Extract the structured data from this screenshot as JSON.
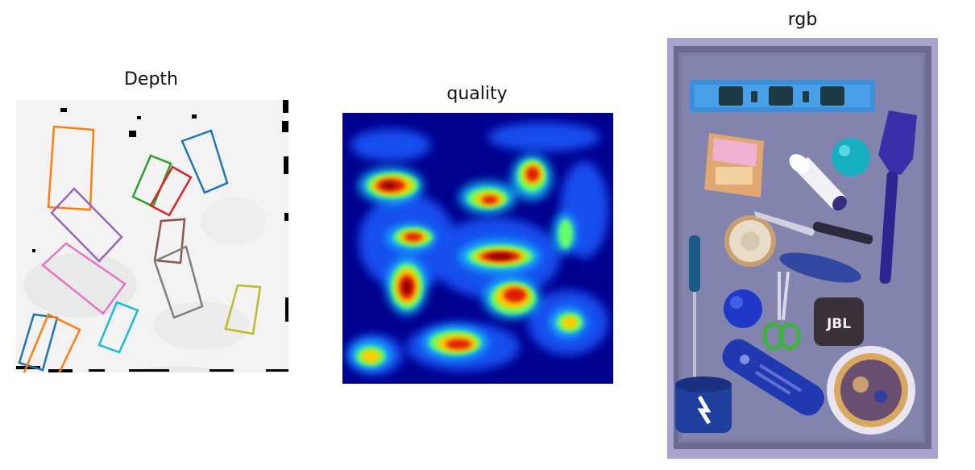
{
  "panels": {
    "depth": {
      "title": "Depth"
    },
    "quality": {
      "title": "quality"
    },
    "rgb": {
      "title": "rgb"
    }
  },
  "colors": {
    "orange": "#ff7f0e",
    "blue": "#1f77b4",
    "green": "#2ca02c",
    "red": "#d62728",
    "purple": "#9467bd",
    "brown": "#8c564b",
    "pink": "#e377c2",
    "gray": "#7f7f7f",
    "olive": "#bcbd22",
    "cyan": "#17becf"
  },
  "objects": {
    "jbl_label": "JBL"
  }
}
